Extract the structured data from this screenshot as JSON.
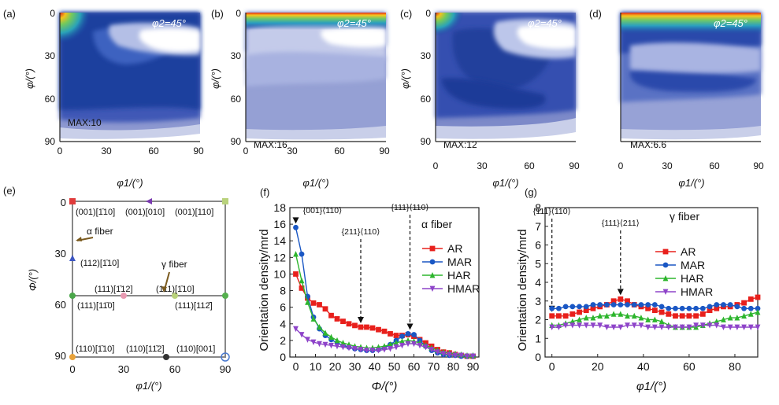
{
  "odf_panels": [
    {
      "label": "(a)",
      "max_text": "MAX:10",
      "phi2_text": "φ2=45°"
    },
    {
      "label": "(b)",
      "max_text": "MAX:16",
      "phi2_text": "φ2=45°"
    },
    {
      "label": "(c)",
      "max_text": "MAX:12",
      "phi2_text": "φ2=45°"
    },
    {
      "label": "(d)",
      "max_text": "MAX:6.6",
      "phi2_text": "φ2=45°"
    }
  ],
  "odf_axes": {
    "xlabel": "φ1/(°)",
    "ylabel": "φ/(°)",
    "xticks": [
      "0",
      "30",
      "60",
      "90"
    ],
    "yticks": [
      "0",
      "30",
      "60",
      "90"
    ]
  },
  "key_panel": {
    "label": "(e)",
    "xlabel": "φ1/(°)",
    "ylabel": "Φ/(°)",
    "xticks": [
      "0",
      "30",
      "60",
      "90"
    ],
    "yticks": [
      "0",
      "30",
      "60",
      "90"
    ],
    "fiber_labels": [
      "α fiber",
      "γ fiber"
    ],
    "orientations": [
      {
        "text": "(001)[1̄10]",
        "phi1": 0,
        "Phi": 0
      },
      {
        "text": "(001)[010]",
        "phi1": 45,
        "Phi": 0
      },
      {
        "text": "(001)[110]",
        "phi1": 90,
        "Phi": 0
      },
      {
        "text": "(112)[1̄10]",
        "phi1": 0,
        "Phi": 35
      },
      {
        "text": "(111)[1̄12]",
        "phi1": 30,
        "Phi": 55
      },
      {
        "text": "(111)[1̄10]",
        "phi1": 60,
        "Phi": 55
      },
      {
        "text": "(111)[11̄0]",
        "phi1": 0,
        "Phi": 55
      },
      {
        "text": "(111)[112̄]",
        "phi1": 90,
        "Phi": 55
      },
      {
        "text": "(110)[1̄10]",
        "phi1": 0,
        "Phi": 90
      },
      {
        "text": "(110)[11̄2]",
        "phi1": 55,
        "Phi": 90
      },
      {
        "text": "(110)[001]",
        "phi1": 90,
        "Phi": 90
      }
    ]
  },
  "chart_data": [
    {
      "type": "line",
      "panel": "(f)",
      "title": "α fiber",
      "xlabel": "Φ/(°)",
      "ylabel": "Orientation density/mrd",
      "xlim": [
        -3,
        93
      ],
      "ylim": [
        0,
        18
      ],
      "xticks": [
        0,
        10,
        20,
        30,
        40,
        50,
        60,
        70,
        80,
        90
      ],
      "yticks": [
        0,
        2,
        4,
        6,
        8,
        10,
        12,
        14,
        16,
        18
      ],
      "annotations": [
        {
          "text": "{001}⟨110⟩",
          "x": 0
        },
        {
          "text": "{211}⟨110⟩",
          "x": 33
        },
        {
          "text": "{111}⟨110⟩",
          "x": 58
        }
      ],
      "x": [
        0,
        3,
        6,
        9,
        12,
        15,
        18,
        21,
        24,
        27,
        30,
        33,
        36,
        39,
        42,
        45,
        48,
        51,
        54,
        57,
        60,
        63,
        66,
        69,
        72,
        75,
        78,
        81,
        84,
        87,
        90
      ],
      "series": [
        {
          "name": "AR",
          "color": "#e8201c",
          "marker": "square",
          "values": [
            10.0,
            8.3,
            7.1,
            6.5,
            6.3,
            5.8,
            5.0,
            4.6,
            4.3,
            4.0,
            3.8,
            3.6,
            3.6,
            3.5,
            3.3,
            3.1,
            2.8,
            2.6,
            2.6,
            2.7,
            2.5,
            2.1,
            1.7,
            1.3,
            0.9,
            0.6,
            0.5,
            0.3,
            0.2,
            0.1,
            0.1
          ]
        },
        {
          "name": "MAR",
          "color": "#1a57c4",
          "marker": "circle",
          "values": [
            15.6,
            12.4,
            7.3,
            4.8,
            3.4,
            2.6,
            2.1,
            1.7,
            1.4,
            1.2,
            1.0,
            0.9,
            0.8,
            0.8,
            0.9,
            1.1,
            1.5,
            2.0,
            2.5,
            2.8,
            2.7,
            2.0,
            1.3,
            0.8,
            0.5,
            0.3,
            0.2,
            0.2,
            0.1,
            0.1,
            0.1
          ]
        },
        {
          "name": "HAR",
          "color": "#2db52d",
          "marker": "triangle-up",
          "values": [
            12.4,
            9.2,
            6.6,
            4.6,
            3.6,
            2.9,
            2.4,
            2.0,
            1.7,
            1.5,
            1.3,
            1.2,
            1.1,
            1.1,
            1.2,
            1.3,
            1.5,
            1.7,
            1.9,
            2.0,
            1.9,
            1.7,
            1.4,
            1.1,
            0.8,
            0.6,
            0.5,
            0.4,
            0.3,
            0.2,
            0.2
          ]
        },
        {
          "name": "HMAR",
          "color": "#8e44c9",
          "marker": "triangle-down",
          "values": [
            3.4,
            2.7,
            2.1,
            1.8,
            1.6,
            1.5,
            1.4,
            1.3,
            1.2,
            1.1,
            1.0,
            0.9,
            0.8,
            0.8,
            0.8,
            0.9,
            1.0,
            1.2,
            1.4,
            1.6,
            1.6,
            1.4,
            1.2,
            0.9,
            0.6,
            0.4,
            0.3,
            0.2,
            0.2,
            0.1,
            0.1
          ]
        }
      ]
    },
    {
      "type": "line",
      "panel": "(g)",
      "title": "γ fiber",
      "xlabel": "φ1/(°)",
      "ylabel": "Orientation density/mrd",
      "xlim": [
        -3,
        90
      ],
      "ylim": [
        0,
        8
      ],
      "xticks": [
        0,
        20,
        40,
        60,
        80
      ],
      "yticks": [
        0,
        1,
        2,
        3,
        4,
        5,
        6,
        7,
        8
      ],
      "annotations": [
        {
          "text": "{111}⟨110⟩",
          "x": 0
        },
        {
          "text": "{111}⟨211⟩",
          "x": 30
        }
      ],
      "x": [
        0,
        3,
        6,
        9,
        12,
        15,
        18,
        21,
        24,
        27,
        30,
        33,
        36,
        39,
        42,
        45,
        48,
        51,
        54,
        57,
        60,
        63,
        66,
        69,
        72,
        75,
        78,
        81,
        84,
        87,
        90
      ],
      "series": [
        {
          "name": "AR",
          "color": "#e8201c",
          "marker": "square",
          "values": [
            2.2,
            2.2,
            2.2,
            2.3,
            2.4,
            2.5,
            2.6,
            2.7,
            2.8,
            3.0,
            3.1,
            3.0,
            2.8,
            2.7,
            2.6,
            2.5,
            2.4,
            2.3,
            2.2,
            2.2,
            2.2,
            2.2,
            2.3,
            2.5,
            2.6,
            2.7,
            2.7,
            2.8,
            2.9,
            3.1,
            3.2
          ]
        },
        {
          "name": "MAR",
          "color": "#1a57c4",
          "marker": "circle",
          "values": [
            2.6,
            2.6,
            2.7,
            2.7,
            2.7,
            2.7,
            2.8,
            2.8,
            2.8,
            2.8,
            2.8,
            2.8,
            2.8,
            2.8,
            2.8,
            2.8,
            2.7,
            2.6,
            2.6,
            2.6,
            2.6,
            2.6,
            2.6,
            2.7,
            2.8,
            2.8,
            2.8,
            2.7,
            2.6,
            2.6,
            2.6
          ]
        },
        {
          "name": "HAR",
          "color": "#2db52d",
          "marker": "triangle-up",
          "values": [
            1.7,
            1.7,
            1.8,
            1.9,
            2.0,
            2.1,
            2.1,
            2.2,
            2.2,
            2.3,
            2.3,
            2.2,
            2.2,
            2.1,
            2.0,
            2.0,
            1.9,
            1.7,
            1.6,
            1.6,
            1.6,
            1.6,
            1.7,
            1.8,
            1.9,
            2.0,
            2.1,
            2.1,
            2.2,
            2.3,
            2.4
          ]
        },
        {
          "name": "HMAR",
          "color": "#8e44c9",
          "marker": "triangle-down",
          "values": [
            1.6,
            1.6,
            1.7,
            1.7,
            1.7,
            1.7,
            1.7,
            1.7,
            1.6,
            1.6,
            1.6,
            1.7,
            1.7,
            1.7,
            1.6,
            1.6,
            1.6,
            1.6,
            1.6,
            1.6,
            1.6,
            1.7,
            1.7,
            1.7,
            1.7,
            1.6,
            1.6,
            1.6,
            1.6,
            1.6,
            1.6
          ]
        }
      ]
    }
  ]
}
